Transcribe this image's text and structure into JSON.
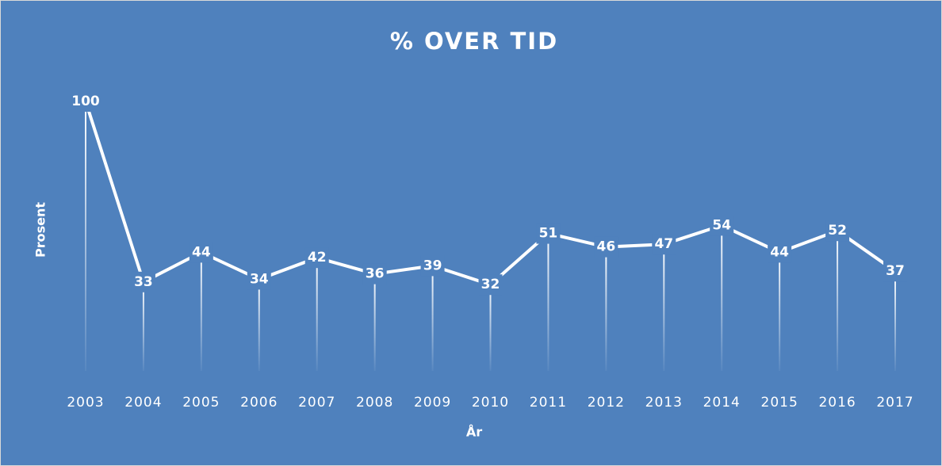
{
  "chart_data": {
    "type": "line",
    "title": "% OVER TID",
    "x_label": "År",
    "y_label": "Prosent",
    "categories": [
      "2003",
      "2004",
      "2005",
      "2006",
      "2007",
      "2008",
      "2009",
      "2010",
      "2011",
      "2012",
      "2013",
      "2014",
      "2015",
      "2016",
      "2017"
    ],
    "series": [
      {
        "name": "Prosent",
        "color": "#ffffff",
        "values": [
          100,
          33,
          44,
          34,
          42,
          36,
          39,
          32,
          51,
          46,
          47,
          54,
          44,
          52,
          37
        ]
      }
    ],
    "ylim": [
      0,
      100
    ],
    "background": "#4f81bd",
    "drop_lines": true,
    "data_labels": true
  }
}
